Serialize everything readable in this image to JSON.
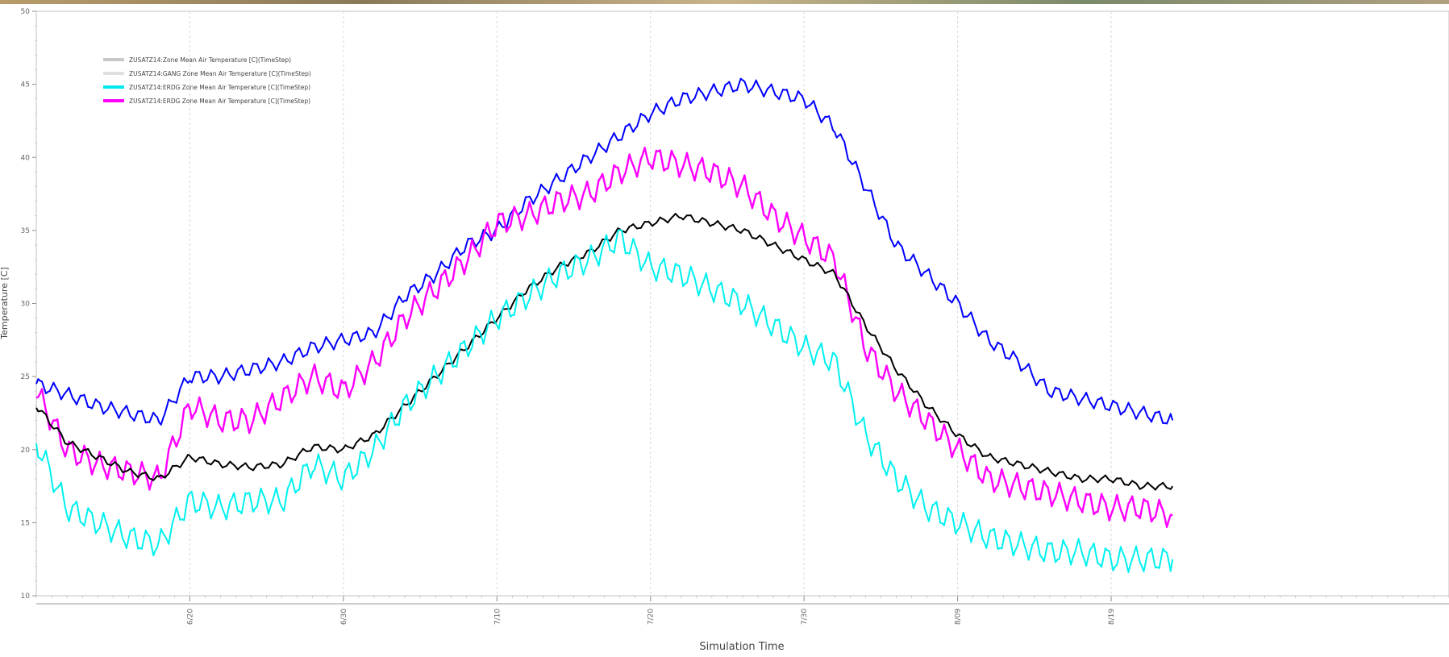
{
  "chart_data": {
    "type": "line",
    "title": "",
    "xlabel": "Simulation Time",
    "ylabel": "Temperature [C]",
    "ylim": [
      10,
      50
    ],
    "xlim": [
      0,
      92
    ],
    "y_ticks": [
      "10",
      "15",
      "20",
      "25",
      "30",
      "35",
      "40",
      "45",
      "50"
    ],
    "x_ticks": [
      {
        "x": 10,
        "label": "6/20"
      },
      {
        "x": 20,
        "label": "6/30"
      },
      {
        "x": 30,
        "label": "7/10"
      },
      {
        "x": 40,
        "label": "7/20"
      },
      {
        "x": 50,
        "label": "7/30"
      },
      {
        "x": 60,
        "label": "8/09"
      },
      {
        "x": 70,
        "label": "8/19"
      }
    ],
    "grid": true,
    "legend_position": "top-left",
    "legend": [
      {
        "label": "ZUSATZ14:Zone Mean Air Temperature [C](TimeStep)",
        "color": "#c8c8c8"
      },
      {
        "label": "ZUSATZ14:GANG Zone Mean Air Temperature [C](TimeStep)",
        "color": "#e0e0e0"
      },
      {
        "label": "ZUSATZ14:ERDG Zone Mean Air Temperature [C](TimeStep)",
        "color": "#00e8f0"
      },
      {
        "label": "ZUSATZ14:ERDG Zone Mean Air Temperature [C](TimeStep)",
        "color": "#ff00ff"
      }
    ],
    "x": [
      0,
      2,
      4,
      6,
      8,
      10,
      12,
      14,
      16,
      18,
      20,
      22,
      24,
      26,
      28,
      30,
      32,
      34,
      36,
      38,
      40,
      42,
      44,
      46,
      48,
      50,
      52,
      54,
      56,
      58,
      60,
      62,
      64,
      66,
      68,
      70,
      72,
      74
    ],
    "series": [
      {
        "color": "#0000ff",
        "values": [
          24.5,
          23.8,
          23.0,
          22.5,
          22.0,
          25.0,
          25.0,
          25.5,
          26.0,
          27.0,
          27.5,
          28.0,
          30.5,
          32.0,
          34.0,
          35.0,
          37.0,
          38.5,
          40.0,
          41.5,
          43.0,
          44.0,
          44.5,
          45.0,
          44.5,
          44.0,
          42.0,
          38.0,
          34.0,
          32.0,
          30.0,
          27.5,
          26.0,
          24.0,
          23.5,
          23.0,
          22.5,
          22.0
        ]
      },
      {
        "color": "#ff00ff",
        "values": [
          24.0,
          20.0,
          19.0,
          18.5,
          18.0,
          23.0,
          22.0,
          22.0,
          23.5,
          25.0,
          24.0,
          26.0,
          29.0,
          31.0,
          33.0,
          35.5,
          36.0,
          37.0,
          37.5,
          39.0,
          40.0,
          39.5,
          39.0,
          38.0,
          36.0,
          34.5,
          33.0,
          27.0,
          24.0,
          22.0,
          20.0,
          18.0,
          17.5,
          17.0,
          16.5,
          16.0,
          16.0,
          15.5
        ]
      },
      {
        "color": "#000000",
        "values": [
          23.0,
          20.5,
          19.5,
          18.5,
          18.0,
          19.5,
          19.0,
          18.8,
          19.0,
          20.2,
          20.0,
          21.0,
          23.0,
          25.0,
          27.0,
          29.0,
          31.0,
          32.5,
          33.5,
          35.0,
          35.5,
          36.0,
          35.5,
          35.0,
          34.0,
          33.0,
          32.0,
          28.5,
          25.5,
          23.0,
          21.0,
          19.5,
          19.0,
          18.5,
          18.0,
          18.0,
          17.5,
          17.5
        ]
      },
      {
        "color": "#00f0f0",
        "values": [
          20.5,
          16.0,
          15.0,
          14.0,
          13.5,
          16.5,
          16.0,
          16.5,
          16.5,
          19.0,
          18.0,
          20.0,
          23.0,
          25.0,
          27.0,
          29.0,
          30.5,
          32.0,
          33.0,
          34.5,
          32.5,
          32.0,
          31.0,
          30.0,
          28.5,
          27.0,
          26.0,
          21.0,
          18.0,
          16.0,
          15.0,
          14.0,
          13.5,
          13.0,
          13.0,
          12.5,
          12.5,
          12.5
        ]
      }
    ]
  }
}
